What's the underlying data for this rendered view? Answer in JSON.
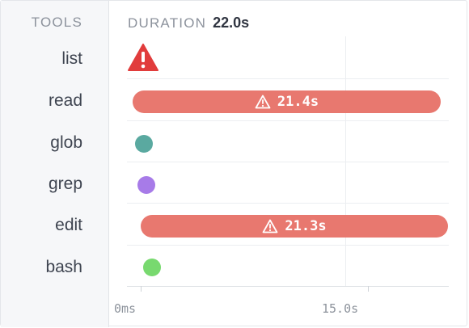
{
  "tools_header": "TOOLS",
  "duration": {
    "label": "DURATION",
    "value": "22.0s"
  },
  "tools": [
    {
      "name": "list",
      "kind": "error"
    },
    {
      "name": "read",
      "kind": "bar",
      "label": "21.4s",
      "color": "#e8786f"
    },
    {
      "name": "glob",
      "kind": "dot",
      "color": "#5aa9a0"
    },
    {
      "name": "grep",
      "kind": "dot",
      "color": "#a77be8"
    },
    {
      "name": "edit",
      "kind": "bar",
      "label": "21.3s",
      "color": "#e8786f"
    },
    {
      "name": "bash",
      "kind": "dot",
      "color": "#78d96f"
    }
  ],
  "axis": {
    "ticks": [
      "0ms",
      "15.0s"
    ]
  },
  "colors": {
    "error": "#e13c3c",
    "bar": "#e8786f"
  },
  "icons": {
    "error": "warning-triangle-icon",
    "bar_warning": "warning-outline-icon"
  }
}
